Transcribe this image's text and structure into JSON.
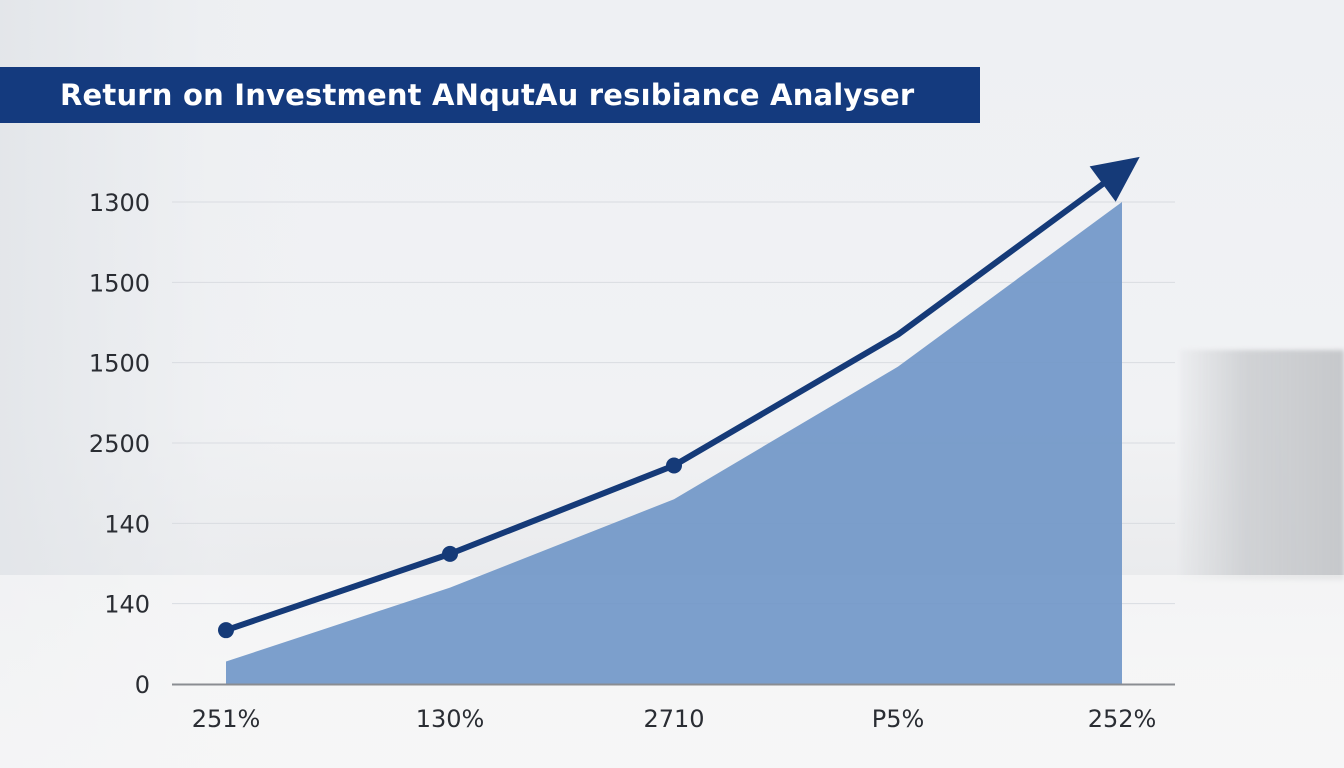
{
  "title": "Return on Investment ANqutAu resıbiance Analyser",
  "colors": {
    "banner": "#143a7e",
    "line": "#153a78",
    "area": "#7197c8",
    "grid": "#d9dce1",
    "axis": "#8a8d92"
  },
  "chart_data": {
    "type": "line",
    "title": "Return on Investment ANqutAu resıbiance Analyser",
    "categories": [
      "251%",
      "130%",
      "2710",
      "P5%",
      "252%"
    ],
    "y_tick_labels": [
      "0",
      "140",
      "140",
      "2500",
      "1500",
      "1500",
      "1300"
    ],
    "y_tick_values": [
      0,
      1,
      2,
      3,
      4,
      5,
      6
    ],
    "ylim": [
      0,
      6
    ],
    "grid": true,
    "series": [
      {
        "kind": "line",
        "values": [
          0.67,
          1.62,
          2.72,
          4.35,
          6.4
        ],
        "markers": [
          true,
          true,
          true,
          false,
          false
        ],
        "arrow_end": true
      },
      {
        "kind": "area",
        "values": [
          0.28,
          1.2,
          2.3,
          3.95,
          6.0
        ]
      }
    ],
    "axis_line_value": 0.0
  }
}
